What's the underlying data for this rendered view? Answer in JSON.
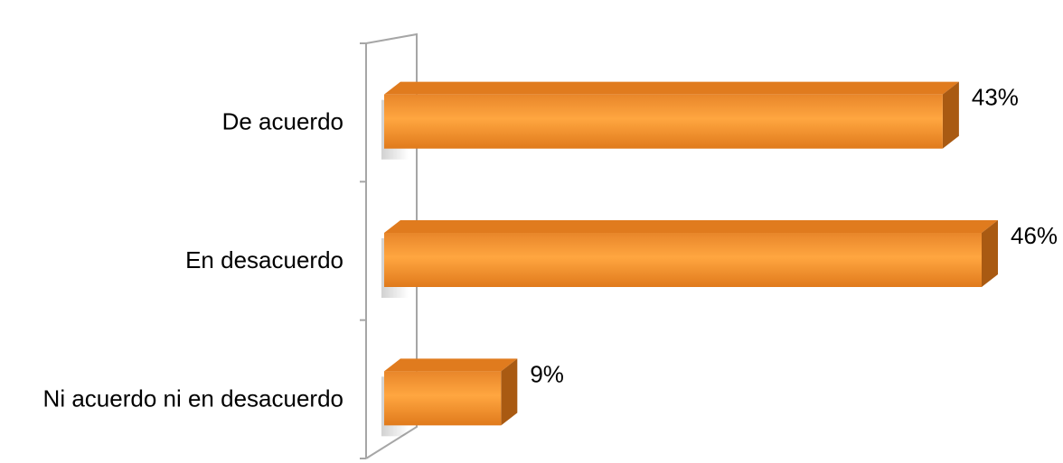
{
  "chart_data": {
    "type": "bar",
    "orientation": "horizontal",
    "style": "3d",
    "categories": [
      "De acuerdo",
      "En desacuerdo",
      "Ni acuerdo ni en desacuerdo"
    ],
    "values": [
      43,
      46,
      9
    ],
    "data_labels": [
      "43%",
      "46%",
      "9%"
    ],
    "unit": "%",
    "xlim": [
      0,
      46
    ],
    "grid": false,
    "legend": "none",
    "colors": {
      "bar_front": "#F39A34",
      "bar_front_light": "#FFB45A",
      "bar_top": "#E07B1E",
      "bar_side": "#A95A12",
      "wall": "#A6A6A6"
    }
  }
}
